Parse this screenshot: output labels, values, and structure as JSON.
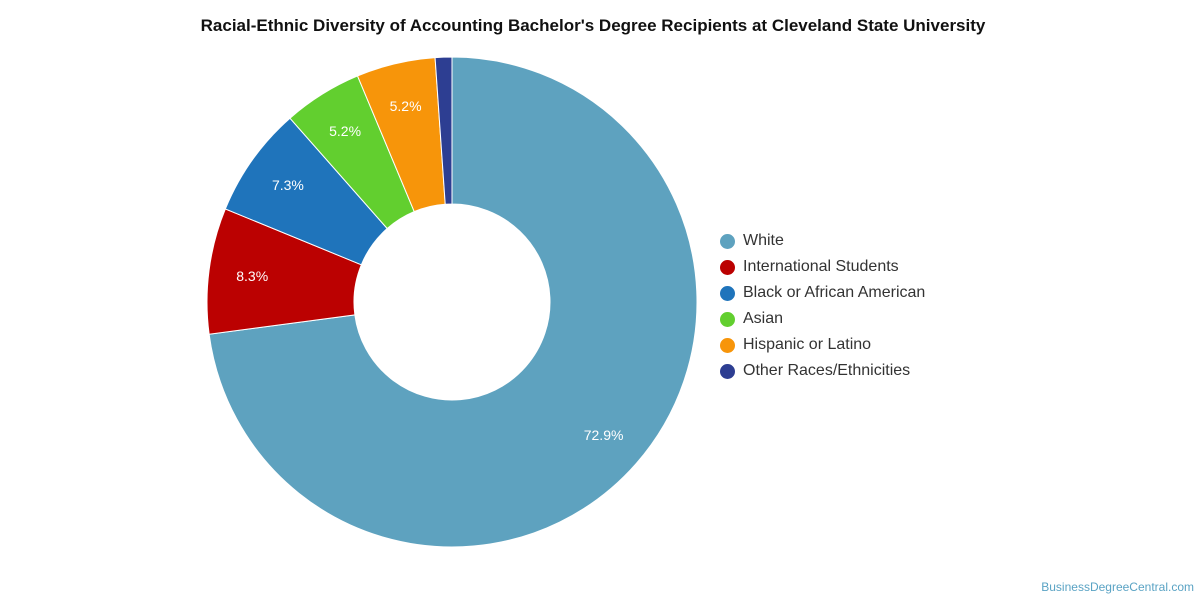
{
  "chart_data": {
    "type": "pie",
    "title": "Racial-Ethnic Diversity of Accounting Bachelor's Degree Recipients at Cleveland State University",
    "donut": true,
    "legend_position": "right",
    "slices": [
      {
        "label": "White",
        "value": 72.9,
        "label_text": "72.9%",
        "color": "#5ea2bf"
      },
      {
        "label": "International Students",
        "value": 8.3,
        "label_text": "8.3%",
        "color": "#bb0101"
      },
      {
        "label": "Black or African American",
        "value": 7.3,
        "label_text": "7.3%",
        "color": "#1f74bb"
      },
      {
        "label": "Asian",
        "value": 5.2,
        "label_text": "5.2%",
        "color": "#62cf2f"
      },
      {
        "label": "Hispanic or Latino",
        "value": 5.2,
        "label_text": "5.2%",
        "color": "#f7950a"
      },
      {
        "label": "Other Races/Ethnicities",
        "value": 1.1,
        "label_text": "",
        "color": "#2d3e92"
      }
    ]
  },
  "watermark": "BusinessDegreeCentral.com"
}
